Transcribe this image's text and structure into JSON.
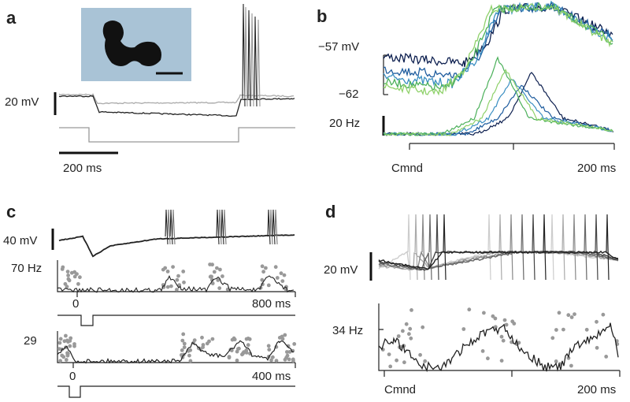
{
  "panels": [
    {
      "label": "a",
      "scale_voltage": "20 mV",
      "scale_time": "200 ms"
    },
    {
      "label": "b",
      "voltage_top": "−57 mV",
      "voltage_bottom": "−62",
      "rate_scale": "20 Hz",
      "x_start": "Cmnd",
      "x_end": "200 ms"
    },
    {
      "label": "c",
      "scale_voltage": "40 mV",
      "rate_top": "70 Hz",
      "x_start_top": "0",
      "x_end_top": "800 ms",
      "rate_bottom": "29",
      "x_start_bottom": "0",
      "x_end_bottom": "400 ms"
    },
    {
      "label": "d",
      "scale_voltage": "20 mV",
      "rate": "34 Hz",
      "x_start": "Cmnd",
      "x_end": "200 ms"
    }
  ]
}
